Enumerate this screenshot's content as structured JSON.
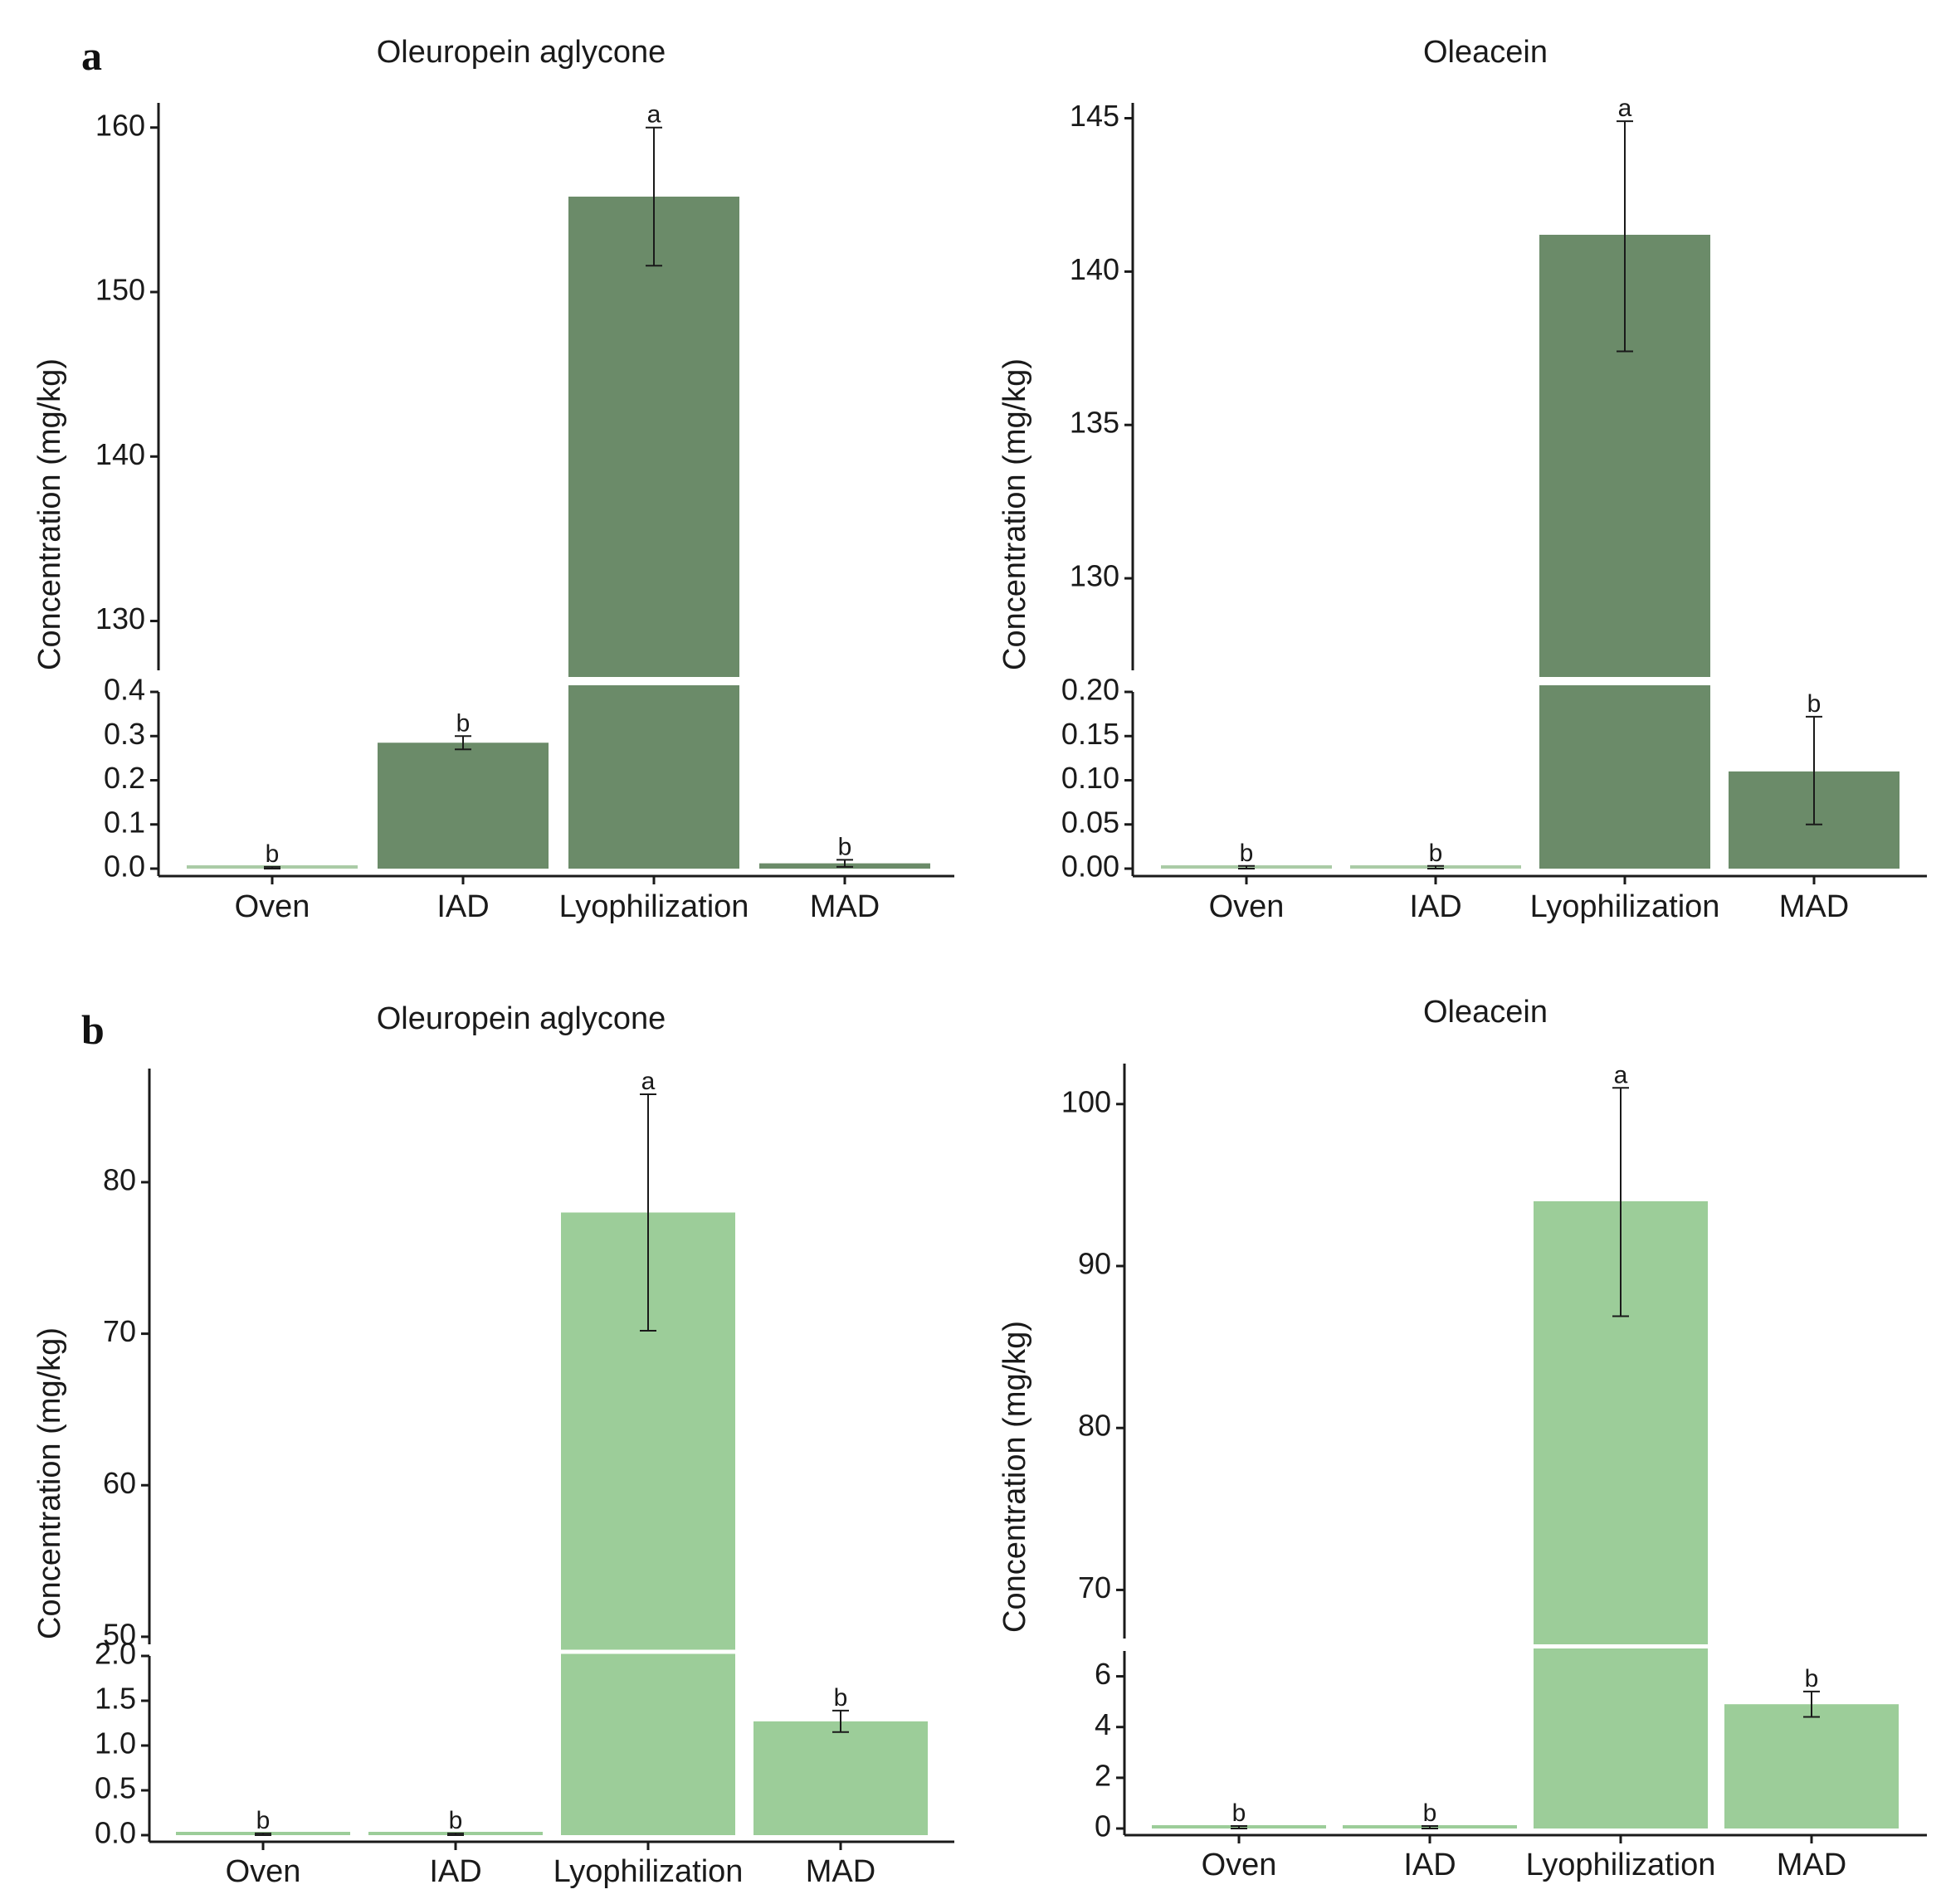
{
  "figure": {
    "panel_letters": [
      "a",
      "b"
    ],
    "y_axis_label": "Concentration (mg/kg)"
  },
  "chart_data": [
    {
      "id": "a-left",
      "panel": "a",
      "type": "bar",
      "title": "Oleuropein aglycone",
      "ylabel": "Concentration (mg/kg)",
      "categories": [
        "Oven",
        "IAD",
        "Lyophilization",
        "MAD"
      ],
      "values": [
        0.002,
        0.285,
        155.8,
        0.012
      ],
      "error": [
        [
          0.0,
          0.004
        ],
        [
          0.27,
          0.3
        ],
        [
          151.6,
          160.0
        ],
        [
          0.004,
          0.02
        ]
      ],
      "significance": [
        "b",
        "b",
        "a",
        "b"
      ],
      "bar_color": "#6b8b69",
      "faint_bar_color": "#aacba6",
      "axis_broken": true,
      "lower_ylim": [
        0,
        0.4
      ],
      "lower_ticks": [
        "0.0",
        "0.1",
        "0.2",
        "0.3",
        "0.4"
      ],
      "upper_ylim": [
        127,
        161.5
      ],
      "upper_ticks": [
        "130",
        "140",
        "150",
        "160"
      ]
    },
    {
      "id": "a-right",
      "panel": "a",
      "type": "bar",
      "title": "Oleacein",
      "ylabel": "Concentration (mg/kg)",
      "categories": [
        "Oven",
        "IAD",
        "Lyophilization",
        "MAD"
      ],
      "values": [
        0.002,
        0.002,
        141.2,
        0.11
      ],
      "error": [
        [
          0.0,
          0.003
        ],
        [
          0.0,
          0.003
        ],
        [
          137.4,
          144.9
        ],
        [
          0.05,
          0.172
        ]
      ],
      "significance": [
        "b",
        "b",
        "a",
        "b"
      ],
      "bar_color": "#6b8b69",
      "faint_bar_color": "#aacba6",
      "axis_broken": true,
      "lower_ylim": [
        0,
        0.2
      ],
      "lower_ticks": [
        "0.00",
        "0.05",
        "0.10",
        "0.15",
        "0.20"
      ],
      "upper_ylim": [
        127,
        145.5
      ],
      "upper_ticks": [
        "130",
        "135",
        "140",
        "145"
      ]
    },
    {
      "id": "b-left",
      "panel": "b",
      "type": "bar",
      "title": "Oleuropein aglycone",
      "ylabel": "Concentration (mg/kg)",
      "categories": [
        "Oven",
        "IAD",
        "Lyophilization",
        "MAD"
      ],
      "values": [
        0.01,
        0.01,
        78.0,
        1.27
      ],
      "error": [
        [
          0.0,
          0.02
        ],
        [
          0.0,
          0.02
        ],
        [
          70.2,
          85.8
        ],
        [
          1.15,
          1.39
        ]
      ],
      "significance": [
        "b",
        "b",
        "a",
        "b"
      ],
      "bar_color": "#9ccd99",
      "faint_bar_color": "#9ccd99",
      "axis_broken": true,
      "lower_ylim": [
        0,
        2.0
      ],
      "lower_ticks": [
        "0.0",
        "0.5",
        "1.0",
        "1.5",
        "2.0"
      ],
      "upper_ylim": [
        49.5,
        87.5
      ],
      "upper_ticks": [
        "50",
        "60",
        "70",
        "80"
      ]
    },
    {
      "id": "b-right",
      "panel": "b",
      "type": "bar",
      "title": "Oleacein",
      "ylabel": "Concentration (mg/kg)",
      "categories": [
        "Oven",
        "IAD",
        "Lyophilization",
        "MAD"
      ],
      "values": [
        0.05,
        0.05,
        94.0,
        4.9
      ],
      "error": [
        [
          0.0,
          0.1
        ],
        [
          0.0,
          0.1
        ],
        [
          86.9,
          101.0
        ],
        [
          4.4,
          5.4
        ]
      ],
      "significance": [
        "b",
        "b",
        "a",
        "b"
      ],
      "bar_color": "#9ccd99",
      "faint_bar_color": "#9ccd99",
      "axis_broken": true,
      "lower_ylim": [
        0,
        7
      ],
      "lower_ticks": [
        "0",
        "2",
        "4",
        "6"
      ],
      "upper_ylim": [
        67,
        102.5
      ],
      "upper_ticks": [
        "70",
        "80",
        "90",
        "100"
      ]
    }
  ]
}
